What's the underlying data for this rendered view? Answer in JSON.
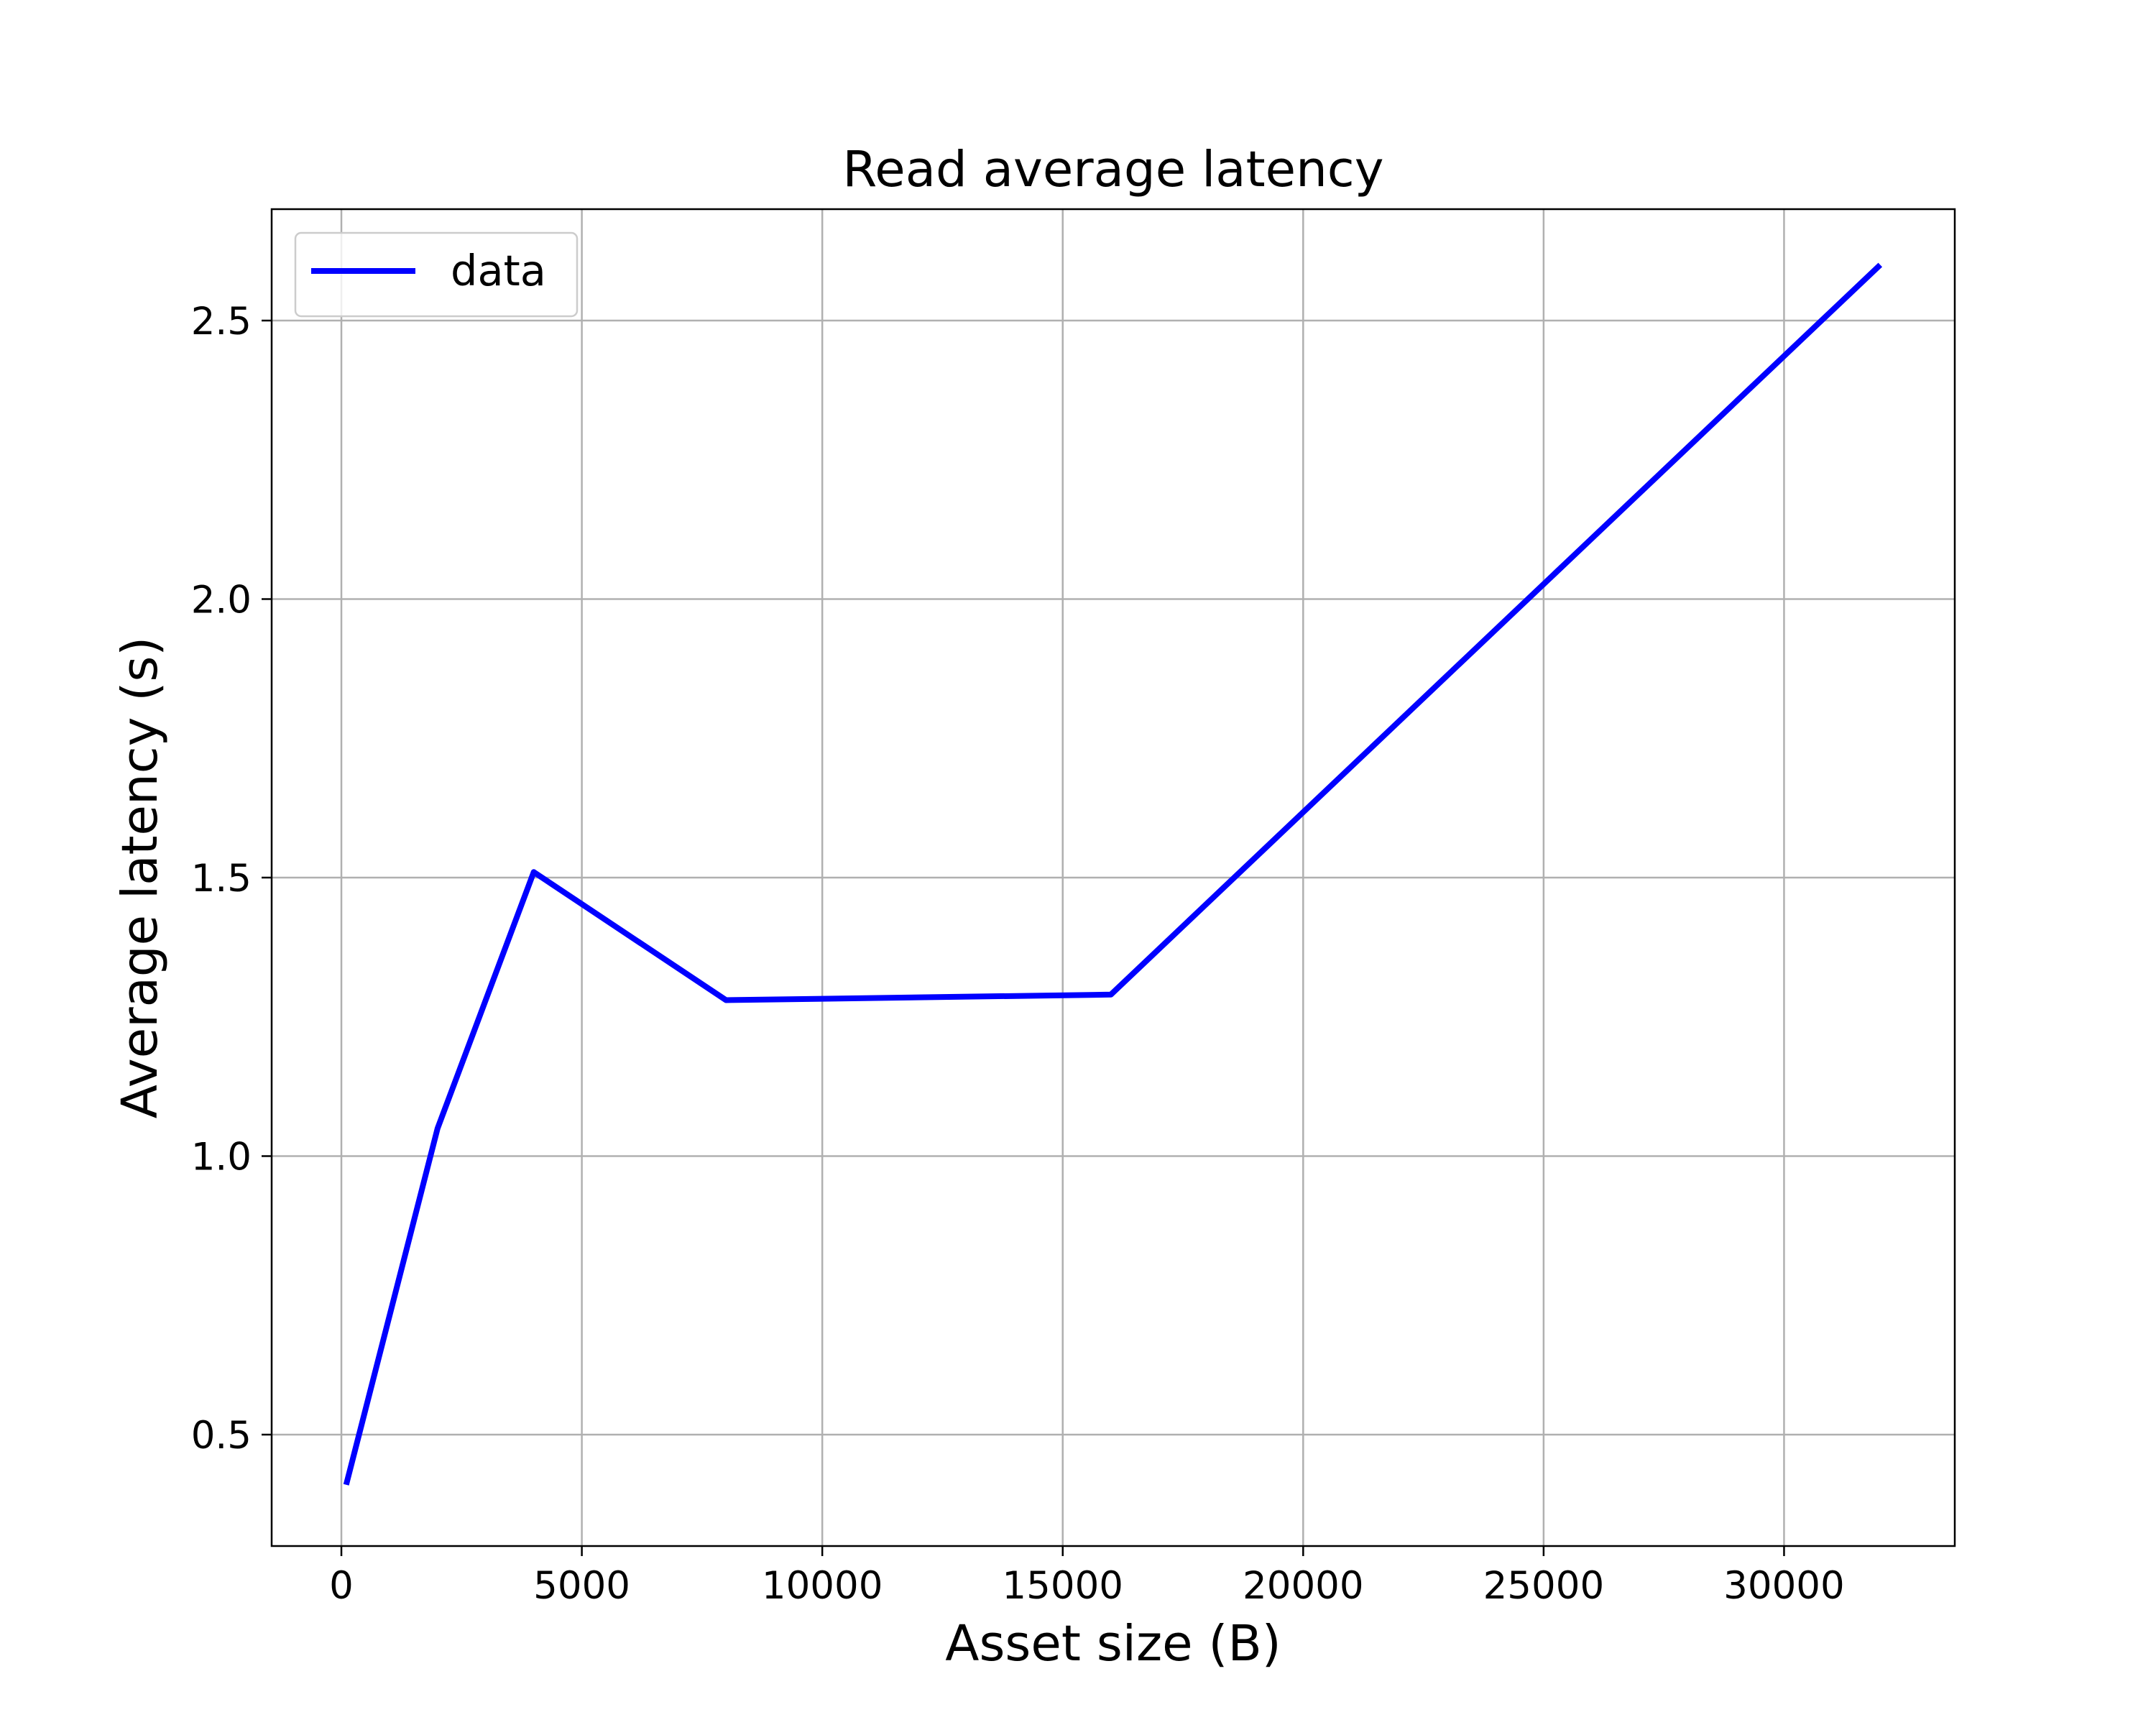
{
  "chart_data": {
    "type": "line",
    "title": "Read average latency",
    "xlabel": "Asset size (B)",
    "ylabel": "Average latency (s)",
    "xlim": [
      -1450,
      33550
    ],
    "ylim": [
      0.3,
      2.7
    ],
    "xticks": [
      0,
      5000,
      10000,
      15000,
      20000,
      25000,
      30000
    ],
    "yticks": [
      0.5,
      1.0,
      1.5,
      2.0,
      2.5
    ],
    "xtick_labels": [
      "0",
      "5000",
      "10000",
      "15000",
      "20000",
      "25000",
      "30000"
    ],
    "ytick_labels": [
      "0.5",
      "1.0",
      "1.5",
      "2.0",
      "2.5"
    ],
    "grid": true,
    "legend_position": "top-left",
    "series": [
      {
        "name": "data",
        "color": "#0000ff",
        "x": [
          100,
          2000,
          4000,
          8000,
          16000,
          32000
        ],
        "y": [
          0.41,
          1.05,
          1.51,
          1.28,
          1.29,
          2.6
        ]
      }
    ]
  }
}
